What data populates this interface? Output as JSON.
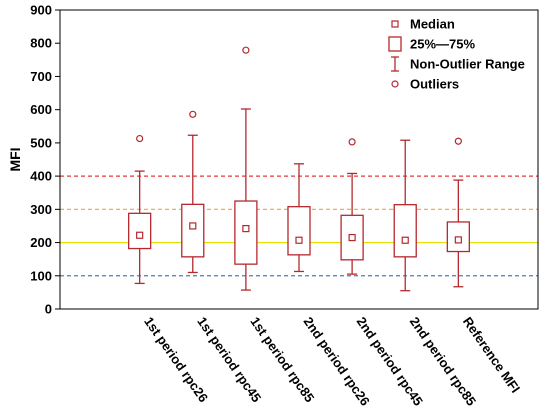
{
  "chart_data": {
    "type": "boxplot",
    "ylabel": "MFI",
    "ylim": [
      0,
      900
    ],
    "yticks": [
      0,
      100,
      200,
      300,
      400,
      500,
      600,
      700,
      800,
      900
    ],
    "categories": [
      "1st period rpc26",
      "1st period rpc45",
      "1st period rpc85",
      "2nd period rpc26",
      "2nd period rpc45",
      "2nd period rpc85",
      "Reference MFI"
    ],
    "boxes": [
      {
        "median": 222,
        "q1": 182,
        "q3": 288,
        "whisker_low": 77,
        "whisker_high": 415,
        "outliers": [
          513
        ]
      },
      {
        "median": 250,
        "q1": 157,
        "q3": 315,
        "whisker_low": 110,
        "whisker_high": 523,
        "outliers": [
          586
        ]
      },
      {
        "median": 242,
        "q1": 135,
        "q3": 325,
        "whisker_low": 57,
        "whisker_high": 602,
        "outliers": [
          779
        ]
      },
      {
        "median": 207,
        "q1": 163,
        "q3": 308,
        "whisker_low": 113,
        "whisker_high": 437,
        "outliers": []
      },
      {
        "median": 215,
        "q1": 148,
        "q3": 282,
        "whisker_low": 105,
        "whisker_high": 408,
        "outliers": [
          503
        ]
      },
      {
        "median": 207,
        "q1": 157,
        "q3": 314,
        "whisker_low": 55,
        "whisker_high": 508,
        "outliers": []
      },
      {
        "median": 208,
        "q1": 173,
        "q3": 262,
        "whisker_low": 67,
        "whisker_high": 388,
        "outliers": [
          505
        ]
      }
    ],
    "reference_lines": [
      {
        "value": 100,
        "color": "#4a7fb5",
        "style": "dashed"
      },
      {
        "value": 200,
        "color": "#e8e000",
        "style": "solid"
      },
      {
        "value": 300,
        "color": "#f2a23a",
        "style": "dashed"
      },
      {
        "value": 400,
        "color": "#e23a3a",
        "style": "dashed"
      }
    ],
    "legend": {
      "position": "top-right",
      "entries": [
        {
          "label": "Median",
          "symbol": "small-square"
        },
        {
          "label": "25%—75%",
          "symbol": "box"
        },
        {
          "label": "Non-Outlier Range",
          "symbol": "whisker"
        },
        {
          "label": "Outliers",
          "symbol": "circle"
        }
      ]
    },
    "series_color": "#b5282e",
    "grid": false
  }
}
